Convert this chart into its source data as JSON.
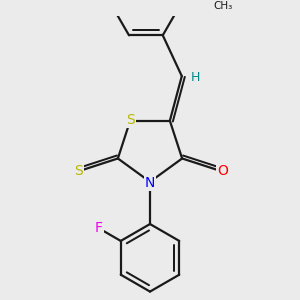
{
  "bg_color": "#ebebeb",
  "bond_color": "#1a1a1a",
  "S_color": "#b8b800",
  "N_color": "#0000ff",
  "O_color": "#ff0000",
  "F_color": "#ee00ee",
  "H_color": "#008888",
  "line_width": 1.6,
  "font_size": 10,
  "ring_S_label": "S",
  "exo_S_label": "S",
  "N_label": "N",
  "O_label": "O",
  "F_label": "F",
  "H_label": "H"
}
